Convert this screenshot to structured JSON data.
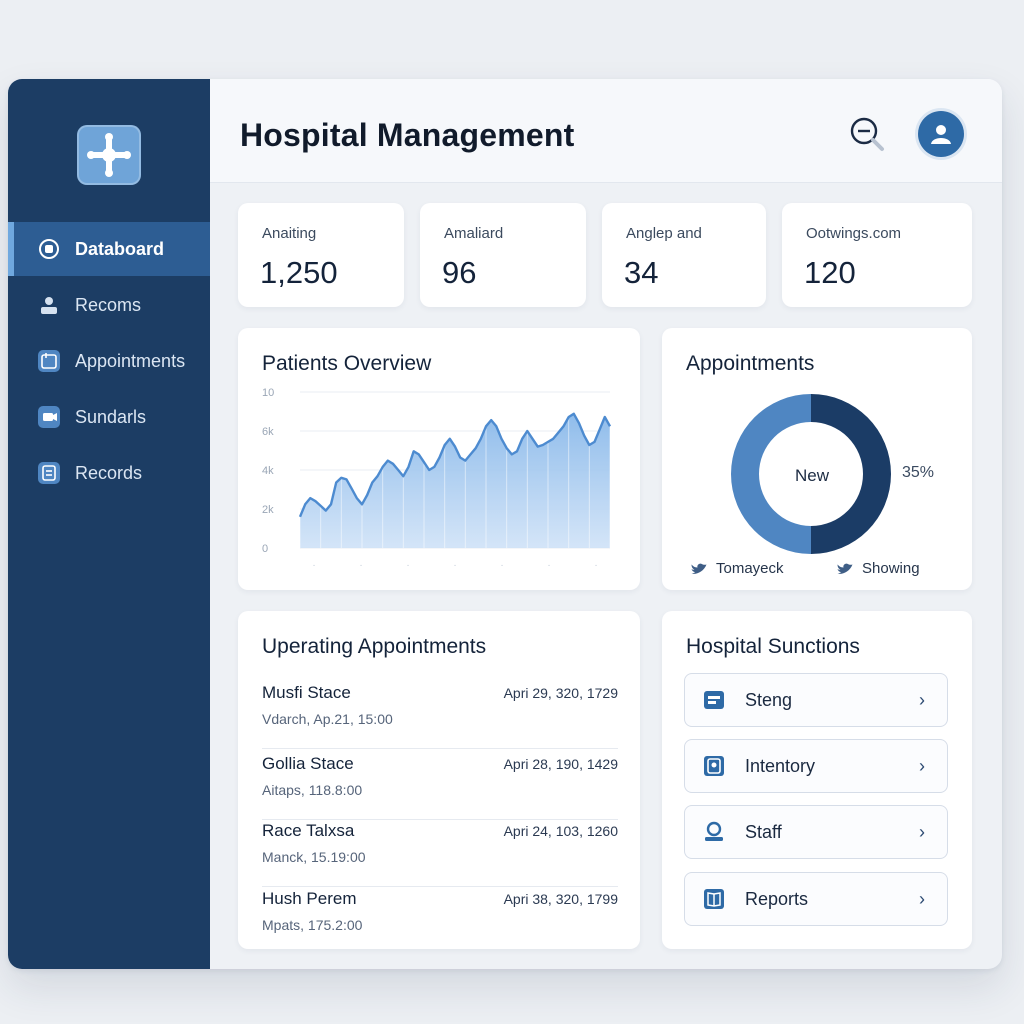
{
  "header": {
    "title": "Hospital Management"
  },
  "sidebar": {
    "items": [
      {
        "label": "Databoard",
        "active": true,
        "icon": "dashboard-icon"
      },
      {
        "label": "Recoms",
        "icon": "person-icon"
      },
      {
        "label": "Appointments",
        "icon": "calendar-icon"
      },
      {
        "label": "Sundarls",
        "icon": "video-icon"
      },
      {
        "label": "Records",
        "icon": "records-icon"
      }
    ]
  },
  "stats": [
    {
      "label": "Anaiting",
      "value": "1,250"
    },
    {
      "label": "Amaliard",
      "value": "96"
    },
    {
      "label": "Anglep and",
      "value": "34"
    },
    {
      "label": "Ootwings.com",
      "value": "120"
    }
  ],
  "patients_overview": {
    "title": "Patients Overview"
  },
  "chart_data": {
    "type": "area",
    "title": "Patients Overview",
    "y_tick_labels": [
      "0",
      "2k",
      "4k",
      "6k",
      "10"
    ],
    "ylim": [
      0,
      100
    ],
    "x_tick_labels": [
      "",
      "",
      "",
      "",
      "",
      "",
      ""
    ],
    "x": [
      0,
      1,
      2,
      3,
      4,
      5,
      6,
      7,
      8,
      9,
      10,
      11,
      12,
      13,
      14,
      15,
      16,
      17,
      18,
      19,
      20,
      21,
      22,
      23,
      24,
      25,
      26,
      27,
      28,
      29,
      30,
      31,
      32,
      33,
      34,
      35,
      36,
      37,
      38,
      39,
      40,
      41,
      42,
      43,
      44,
      45,
      46,
      47,
      48,
      49,
      50,
      51,
      52,
      53,
      54,
      55,
      56,
      57,
      58,
      59,
      60
    ],
    "values": [
      20,
      28,
      32,
      30,
      27,
      24,
      28,
      42,
      45,
      44,
      38,
      32,
      28,
      34,
      42,
      46,
      52,
      56,
      54,
      50,
      46,
      52,
      62,
      60,
      55,
      50,
      52,
      58,
      66,
      70,
      65,
      58,
      56,
      60,
      64,
      70,
      78,
      82,
      78,
      70,
      64,
      60,
      62,
      70,
      75,
      70,
      65,
      66,
      68,
      70,
      74,
      78,
      84,
      86,
      80,
      72,
      66,
      68,
      76,
      84,
      78
    ],
    "series_color": "#4d8bd0",
    "grid": true
  },
  "appointments_card": {
    "title": "Appointments",
    "center_label": "New",
    "percent_label": "35%",
    "slices": [
      {
        "value": 50,
        "color": "#1b3c66"
      },
      {
        "value": 50,
        "color": "#4f86c2"
      }
    ],
    "legend": [
      {
        "label": "Tomayeck"
      },
      {
        "label": "Showing"
      }
    ]
  },
  "upcoming": {
    "title": "Uperating Appointments",
    "rows": [
      {
        "name": "Musfi Stace",
        "sub": "Vdarch, Ap.21, 15:00",
        "date": "Apri 29, 320, 1729"
      },
      {
        "name": "Gollia Stace",
        "sub": "Aitaps, 118.8:00",
        "date": "Apri 28, 190, 1429"
      },
      {
        "name": "Race Talxsa",
        "sub": "Manck, 15.19:00",
        "date": "Apri 24, 103, 1260"
      },
      {
        "name": "Hush Perem",
        "sub": "Mpats, 175.2:00",
        "date": "Apri 38, 320, 1799"
      }
    ]
  },
  "functions": {
    "title": "Hospital Sunctions",
    "items": [
      {
        "label": "Steng",
        "icon": "settings-icon"
      },
      {
        "label": "Intentory",
        "icon": "inventory-icon"
      },
      {
        "label": "Staff",
        "icon": "staff-icon"
      },
      {
        "label": "Reports",
        "icon": "reports-icon"
      }
    ]
  },
  "colors": {
    "sidebar": "#1c3d64",
    "accent": "#2e6aa6",
    "active_nav": "#2d5d93"
  }
}
